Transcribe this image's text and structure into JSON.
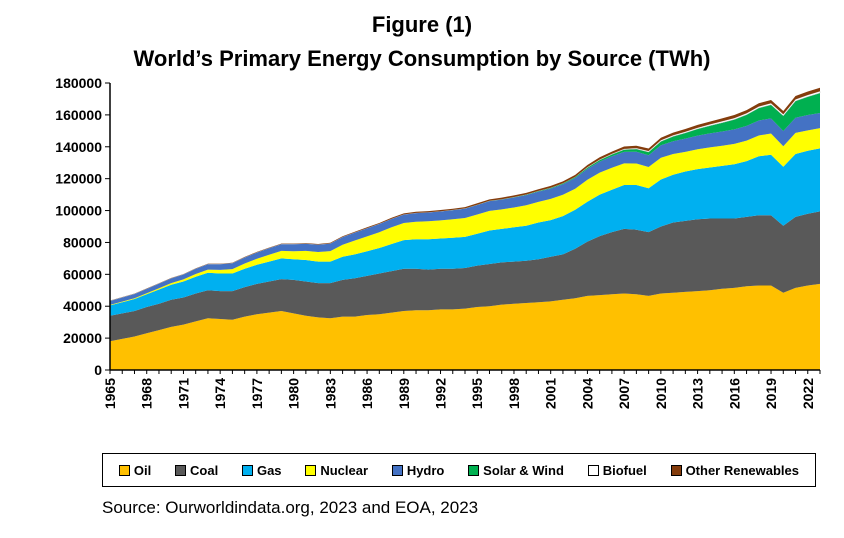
{
  "figure_label": "Figure (1)",
  "chart_data": {
    "type": "area",
    "stacked": true,
    "title": "World’s Primary Energy Consumption by Source (TWh)",
    "xlabel": "",
    "ylabel": "",
    "ylim": [
      0,
      180000
    ],
    "y_ticks": [
      "0",
      "20000",
      "40000",
      "60000",
      "80000",
      "100000",
      "120000",
      "140000",
      "160000",
      "180000"
    ],
    "x_tick_labels": [
      "1965",
      "1968",
      "1971",
      "1974",
      "1977",
      "1980",
      "1983",
      "1986",
      "1989",
      "1992",
      "1995",
      "1998",
      "2001",
      "2004",
      "2007",
      "2010",
      "2013",
      "2016",
      "2019",
      "2022"
    ],
    "x": [
      1965,
      1966,
      1967,
      1968,
      1969,
      1970,
      1971,
      1972,
      1973,
      1974,
      1975,
      1976,
      1977,
      1978,
      1979,
      1980,
      1981,
      1982,
      1983,
      1984,
      1985,
      1986,
      1987,
      1988,
      1989,
      1990,
      1991,
      1992,
      1993,
      1994,
      1995,
      1996,
      1997,
      1998,
      1999,
      2000,
      2001,
      2002,
      2003,
      2004,
      2005,
      2006,
      2007,
      2008,
      2009,
      2010,
      2011,
      2012,
      2013,
      2014,
      2015,
      2016,
      2017,
      2018,
      2019,
      2020,
      2021,
      2022,
      2023
    ],
    "grid": false,
    "legend_position": "bottom",
    "series": [
      {
        "name": "Oil",
        "color": "#FFC000",
        "values": [
          18000,
          19500,
          21000,
          23000,
          25000,
          27000,
          28500,
          30500,
          32500,
          32000,
          31500,
          33500,
          35000,
          36000,
          37000,
          35500,
          34000,
          33000,
          32500,
          33500,
          33500,
          34500,
          35000,
          36000,
          37000,
          37500,
          37500,
          38000,
          38000,
          38500,
          39500,
          40000,
          41000,
          41500,
          42000,
          42500,
          43000,
          44000,
          45000,
          46500,
          47000,
          47500,
          48000,
          47500,
          46500,
          48000,
          48500,
          49000,
          49500,
          50000,
          51000,
          51500,
          52500,
          53000,
          53000,
          48500,
          51500,
          53000,
          54000
        ]
      },
      {
        "name": "Coal",
        "color": "#595959",
        "values": [
          16000,
          16000,
          16000,
          16500,
          16500,
          17000,
          17000,
          17500,
          17500,
          17500,
          18000,
          18500,
          19000,
          19500,
          20000,
          21000,
          21500,
          21500,
          22000,
          23000,
          24000,
          24500,
          25500,
          26000,
          26500,
          26000,
          25500,
          25500,
          25500,
          25500,
          26000,
          26500,
          26500,
          26500,
          26500,
          27000,
          28000,
          28500,
          31000,
          34000,
          37000,
          39000,
          40500,
          40500,
          40000,
          42000,
          44000,
          44500,
          45000,
          45000,
          44000,
          43500,
          43500,
          44000,
          44000,
          42000,
          44500,
          45000,
          45500
        ]
      },
      {
        "name": "Gas",
        "color": "#00B0F0",
        "values": [
          6500,
          7000,
          7500,
          8000,
          9000,
          9500,
          10000,
          10500,
          11000,
          11000,
          11000,
          11500,
          12000,
          12500,
          13000,
          13000,
          13500,
          13500,
          13500,
          14500,
          15000,
          15500,
          16000,
          17000,
          18000,
          18500,
          19000,
          19000,
          19500,
          19500,
          20000,
          21000,
          21000,
          21500,
          22000,
          23000,
          23000,
          24000,
          24500,
          25000,
          26000,
          26500,
          27500,
          28000,
          27500,
          29500,
          30000,
          31000,
          31500,
          32000,
          33000,
          34000,
          35000,
          37000,
          38000,
          37000,
          39500,
          39500,
          39500
        ]
      },
      {
        "name": "Nuclear",
        "color": "#FFFF00",
        "values": [
          300,
          400,
          500,
          600,
          800,
          1000,
          1300,
          1700,
          2000,
          2300,
          2800,
          3300,
          3800,
          4300,
          4700,
          5000,
          5700,
          6000,
          6600,
          7500,
          8700,
          9300,
          9900,
          10500,
          10700,
          11000,
          11300,
          11300,
          11500,
          11800,
          12000,
          12300,
          12200,
          12400,
          12800,
          12900,
          13300,
          13400,
          13200,
          13800,
          13800,
          13900,
          13600,
          13500,
          13300,
          13600,
          13000,
          12300,
          12400,
          12600,
          12700,
          12800,
          12900,
          13100,
          13300,
          12800,
          13200,
          12800,
          12700
        ]
      },
      {
        "name": "Hydro",
        "color": "#4472C4",
        "values": [
          2600,
          2700,
          2800,
          2900,
          3000,
          3100,
          3200,
          3400,
          3500,
          3700,
          3800,
          3900,
          4000,
          4200,
          4300,
          4500,
          4600,
          4700,
          4800,
          5000,
          5100,
          5200,
          5300,
          5400,
          5400,
          5500,
          5600,
          5700,
          5800,
          5900,
          6000,
          6100,
          6200,
          6300,
          6400,
          6500,
          6500,
          6600,
          6700,
          6800,
          6900,
          7100,
          7200,
          7400,
          7400,
          7800,
          8000,
          8300,
          8600,
          8800,
          8900,
          9100,
          9200,
          9400,
          9500,
          9600,
          9500,
          9600,
          9500
        ]
      },
      {
        "name": "Solar & Wind",
        "color": "#00B050",
        "values": [
          0,
          0,
          0,
          0,
          0,
          0,
          0,
          0,
          0,
          0,
          0,
          0,
          0,
          0,
          0,
          0,
          0,
          0,
          0,
          0,
          0,
          0,
          0,
          0,
          0,
          50,
          80,
          100,
          120,
          150,
          180,
          200,
          250,
          300,
          350,
          400,
          500,
          600,
          700,
          850,
          1000,
          1200,
          1400,
          1700,
          2000,
          2500,
          3000,
          3600,
          4200,
          4800,
          5500,
          6200,
          7000,
          7800,
          8500,
          9500,
          10500,
          11500,
          12500
        ]
      },
      {
        "name": "Biofuel",
        "color": "#FFFFFF",
        "values": [
          0,
          0,
          0,
          0,
          0,
          0,
          0,
          0,
          0,
          0,
          0,
          0,
          0,
          0,
          0,
          0,
          0,
          0,
          0,
          0,
          0,
          0,
          0,
          0,
          0,
          0,
          0,
          0,
          0,
          0,
          0,
          0,
          0,
          0,
          0,
          0,
          0,
          0,
          0,
          300,
          350,
          400,
          500,
          600,
          650,
          700,
          720,
          740,
          780,
          820,
          860,
          900,
          940,
          980,
          1000,
          950,
          1000,
          1050,
          1100
        ]
      },
      {
        "name": "Other Renewables",
        "color": "#843C0C",
        "values": [
          100,
          100,
          100,
          120,
          120,
          130,
          140,
          150,
          160,
          180,
          200,
          220,
          240,
          260,
          280,
          300,
          320,
          340,
          360,
          400,
          440,
          480,
          520,
          560,
          600,
          640,
          680,
          720,
          760,
          800,
          850,
          900,
          950,
          1000,
          1050,
          1100,
          1150,
          1200,
          1250,
          1300,
          1350,
          1400,
          1450,
          1500,
          1550,
          1600,
          1650,
          1700,
          1750,
          1800,
          1850,
          1900,
          1950,
          2000,
          2050,
          2100,
          2150,
          2200,
          2250
        ]
      }
    ]
  },
  "source_note": "Source: Ourworldindata.org, 2023 and EOA, 2023"
}
